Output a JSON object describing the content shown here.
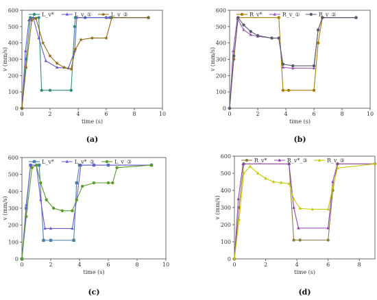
{
  "chart_data": [
    {
      "type": "line",
      "caption": "(a)",
      "xlabel": "time (s)",
      "ylabel": "v (mm/s)",
      "xlim": [
        0,
        10
      ],
      "ylim": [
        0,
        600
      ],
      "xticks": [
        0,
        2,
        4,
        6,
        8,
        10
      ],
      "yticks": [
        0,
        100,
        200,
        300,
        400,
        500,
        600
      ],
      "legend_position": "top",
      "series": [
        {
          "name": "L_v*",
          "color": "#2e8b7a",
          "marker": "circle",
          "x": [
            0,
            0.3,
            0.6,
            1.2,
            1.4,
            2.0,
            3.5,
            3.75,
            3.8,
            4.5,
            6.0,
            6.3,
            9.0
          ],
          "y": [
            0,
            300,
            555,
            555,
            110,
            110,
            110,
            500,
            555,
            555,
            555,
            555,
            555
          ]
        },
        {
          "name": "L_v_①",
          "color": "#6a5acd",
          "marker": "triangle",
          "x": [
            0,
            0.25,
            0.5,
            0.8,
            1.2,
            1.7,
            2.5,
            3.3,
            3.75,
            3.9,
            4.5,
            6.0,
            6.2,
            9.0
          ],
          "y": [
            0,
            350,
            540,
            555,
            430,
            290,
            250,
            245,
            350,
            555,
            555,
            555,
            555,
            555
          ]
        },
        {
          "name": "L_v_②",
          "color": "#8b6914",
          "marker": "star",
          "x": [
            0,
            0.3,
            0.7,
            1.0,
            1.5,
            2.0,
            2.5,
            3.0,
            3.5,
            3.8,
            4.2,
            5.0,
            6.0,
            6.4,
            9.0
          ],
          "y": [
            0,
            250,
            540,
            550,
            400,
            320,
            275,
            250,
            240,
            360,
            420,
            430,
            430,
            555,
            555
          ]
        }
      ]
    },
    {
      "type": "line",
      "caption": "(b)",
      "xlabel": "time (s)",
      "ylabel": "v (mm/s)",
      "xlim": [
        0,
        10
      ],
      "ylim": [
        0,
        600
      ],
      "xticks": [
        0,
        2,
        4,
        6,
        8,
        10
      ],
      "yticks": [
        0,
        100,
        200,
        300,
        400,
        500,
        600
      ],
      "legend_position": "top",
      "series": [
        {
          "name": "R_v*",
          "color": "#a67c00",
          "marker": "circle",
          "x": [
            0,
            0.3,
            0.6,
            3.5,
            3.8,
            4.2,
            6.0,
            6.3,
            6.6,
            9.0
          ],
          "y": [
            0,
            300,
            555,
            555,
            110,
            110,
            110,
            400,
            555,
            555
          ]
        },
        {
          "name": "R_v_①",
          "color": "#9b59b6",
          "marker": "triangle",
          "x": [
            0,
            0.25,
            0.55,
            1.0,
            1.5,
            2.0,
            3.0,
            3.5,
            3.8,
            4.5,
            6.0,
            6.3,
            6.6,
            9.0
          ],
          "y": [
            0,
            350,
            550,
            480,
            450,
            440,
            430,
            430,
            250,
            245,
            245,
            480,
            555,
            555
          ]
        },
        {
          "name": "R_v_②",
          "color": "#5a5a6e",
          "marker": "circle",
          "x": [
            0,
            0.3,
            0.6,
            1.0,
            1.5,
            2.0,
            3.0,
            3.5,
            3.8,
            4.5,
            6.0,
            6.3,
            6.6,
            9.0
          ],
          "y": [
            0,
            320,
            555,
            510,
            470,
            445,
            430,
            430,
            270,
            260,
            260,
            480,
            555,
            555
          ]
        }
      ]
    },
    {
      "type": "line",
      "caption": "(c)",
      "xlabel": "time (s)",
      "ylabel": "v (mm/s)",
      "xlim": [
        0,
        10
      ],
      "ylim": [
        0,
        600
      ],
      "xticks": [
        0,
        2,
        4,
        6,
        8,
        10
      ],
      "yticks": [
        0,
        100,
        200,
        300,
        400,
        500,
        600
      ],
      "legend_position": "top",
      "series": [
        {
          "name": "L_v*",
          "color": "#4a7fa8",
          "marker": "square",
          "x": [
            0,
            0.3,
            0.6,
            1.2,
            1.5,
            2.0,
            3.6,
            3.8,
            4.0,
            5.0,
            6.0,
            9.0
          ],
          "y": [
            0,
            300,
            555,
            555,
            110,
            110,
            110,
            450,
            555,
            555,
            555,
            555
          ]
        },
        {
          "name": "L_v*_③",
          "color": "#6a5acd",
          "marker": "triangle",
          "x": [
            0,
            0.3,
            0.6,
            1.0,
            1.3,
            1.6,
            2.0,
            3.5,
            3.8,
            4.1,
            5.0,
            9.0
          ],
          "y": [
            0,
            320,
            555,
            555,
            350,
            180,
            180,
            180,
            350,
            555,
            555,
            555
          ]
        },
        {
          "name": "L_v_③",
          "color": "#5a9a2a",
          "marker": "circle",
          "x": [
            0,
            0.3,
            0.7,
            1.0,
            1.3,
            1.7,
            2.2,
            2.8,
            3.5,
            3.8,
            4.2,
            5.0,
            6.0,
            6.3,
            6.6,
            9.0
          ],
          "y": [
            0,
            250,
            540,
            555,
            450,
            350,
            300,
            285,
            285,
            350,
            430,
            450,
            450,
            450,
            540,
            555
          ]
        }
      ]
    },
    {
      "type": "line",
      "caption": "(d)",
      "xlabel": "time (s)",
      "ylabel": "v (mm/s)",
      "xlim": [
        0,
        9
      ],
      "ylim": [
        0,
        600
      ],
      "xticks": [
        0,
        2,
        4,
        6,
        8
      ],
      "yticks": [
        0,
        100,
        200,
        300,
        400,
        500,
        600
      ],
      "legend_position": "top",
      "series": [
        {
          "name": "R_v*",
          "color": "#8b7d3a",
          "marker": "circle",
          "x": [
            0,
            0.3,
            0.6,
            3.5,
            3.8,
            4.2,
            6.0,
            6.3,
            6.6,
            9.0
          ],
          "y": [
            0,
            300,
            555,
            555,
            110,
            110,
            110,
            400,
            555,
            555
          ]
        },
        {
          "name": "R_v*_③",
          "color": "#8e44ad",
          "marker": "triangle",
          "x": [
            0,
            0.25,
            0.55,
            3.5,
            3.8,
            4.1,
            6.0,
            6.3,
            6.6,
            9.0
          ],
          "y": [
            0,
            350,
            555,
            555,
            300,
            180,
            180,
            450,
            555,
            555
          ]
        },
        {
          "name": "R_v_③",
          "color": "#c8c800",
          "marker": "triangle",
          "x": [
            0,
            0.3,
            0.6,
            1.0,
            1.5,
            2.0,
            2.5,
            3.0,
            3.5,
            3.8,
            4.2,
            5.0,
            6.0,
            6.3,
            6.6,
            9.0
          ],
          "y": [
            0,
            230,
            500,
            540,
            500,
            470,
            450,
            445,
            440,
            350,
            295,
            290,
            290,
            420,
            530,
            555
          ]
        }
      ]
    }
  ]
}
